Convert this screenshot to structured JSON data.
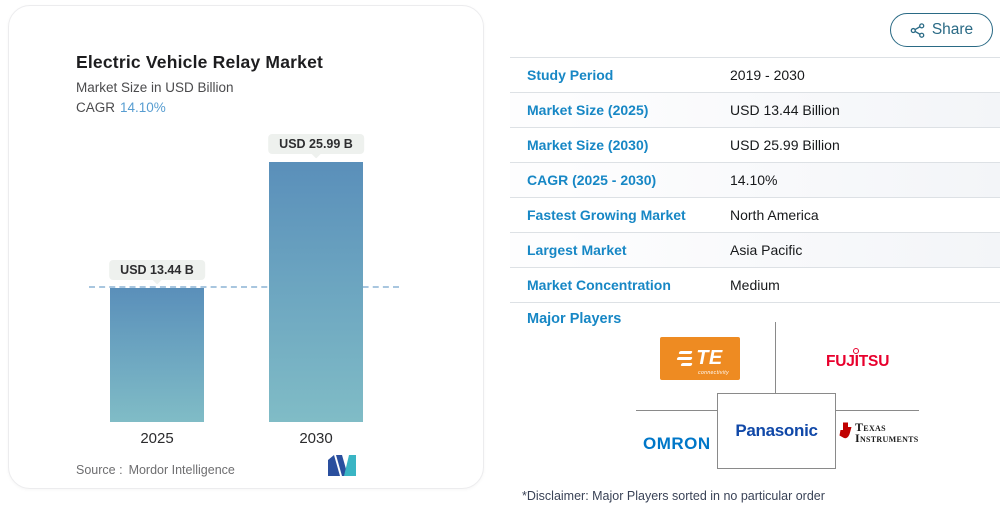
{
  "share": {
    "label": "Share"
  },
  "chart_card": {
    "title": "Electric Vehicle Relay Market",
    "subtitle": "Market Size in USD Billion",
    "cagr_label": "CAGR",
    "cagr_value": "14.10%",
    "source_prefix": "Source :",
    "source_name": "Mordor Intelligence"
  },
  "chart_data": {
    "type": "bar",
    "title": "Electric Vehicle Relay Market",
    "subtitle": "Market Size in USD Billion",
    "categories": [
      "2025",
      "2030"
    ],
    "values": [
      13.44,
      25.99
    ],
    "unit": "USD Billion",
    "bar_labels": [
      "USD 13.44 B",
      "USD 25.99 B"
    ],
    "cagr": "14.10%",
    "dashed_reference_line_at": 13.44,
    "ylim": [
      0,
      26
    ],
    "grid": false,
    "legend": "none",
    "colors": {
      "bar_gradient_top": "#5a8fba",
      "bar_gradient_bottom": "#80bcc6",
      "dashed_line": "#a8c6df",
      "callout_background": "#eef1ee"
    }
  },
  "table": {
    "rows": [
      {
        "label": "Study Period",
        "value": "2019 - 2030"
      },
      {
        "label": "Market Size (2025)",
        "value": "USD 13.44 Billion"
      },
      {
        "label": "Market Size (2030)",
        "value": "USD 25.99 Billion"
      },
      {
        "label": "CAGR (2025 - 2030)",
        "value": "14.10%"
      },
      {
        "label": "Fastest Growing Market",
        "value": "North America"
      },
      {
        "label": "Largest Market",
        "value": "Asia Pacific"
      },
      {
        "label": "Market Concentration",
        "value": "Medium"
      }
    ]
  },
  "major_players": {
    "label": "Major Players",
    "disclaimer": "*Disclaimer: Major Players sorted in no particular order",
    "players": [
      {
        "name": "TE Connectivity",
        "logo_text": "TE",
        "logo_subtext": "connectivity",
        "color": "#ee8b22"
      },
      {
        "name": "FUJITSU",
        "logo_text": "FUJITSU",
        "color": "#e8002d"
      },
      {
        "name": "OMRON",
        "logo_text": "OMRON",
        "color": "#0077c8"
      },
      {
        "name": "Panasonic",
        "logo_text": "Panasonic",
        "color": "#1048a8"
      },
      {
        "name": "Texas Instruments",
        "logo_text_line1": "Texas",
        "logo_text_line2": "Instruments",
        "color": "#cc0000"
      }
    ]
  },
  "icons": {
    "share": "share-network-icon",
    "brand_logo": "mordor-intelligence-m-mark",
    "ti_mark": "texas-state-red-mark"
  },
  "colors": {
    "accent_blue_labels": "#1787c5",
    "cagr_value_blue": "#579dd1",
    "share_button": "#2a6a85",
    "table_separator": "#dde1e5",
    "org_chart_lines": "#8a8a8a"
  }
}
